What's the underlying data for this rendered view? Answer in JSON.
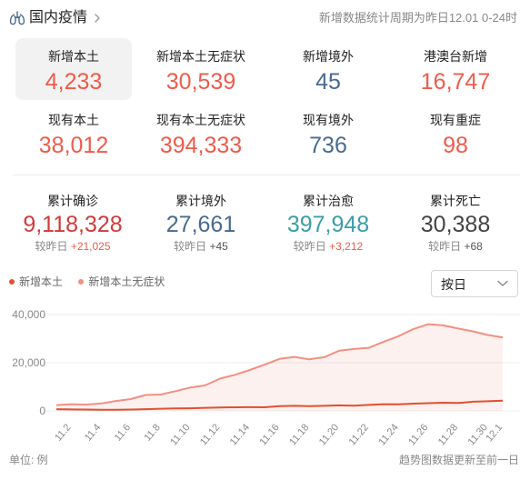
{
  "header": {
    "title": "国内疫情",
    "period_note": "新增数据统计周期为昨日12.01 0-24时"
  },
  "stats": [
    {
      "label": "新增本土",
      "value": "4,233",
      "color": "#ef5b4b",
      "active": true
    },
    {
      "label": "新增本土无症状",
      "value": "30,539",
      "color": "#ef5b4b"
    },
    {
      "label": "新增境外",
      "value": "45",
      "color": "#4a6a8f"
    },
    {
      "label": "港澳台新增",
      "value": "16,747",
      "color": "#ef5b4b"
    },
    {
      "label": "现有本土",
      "value": "38,012",
      "color": "#ef5b4b"
    },
    {
      "label": "现有本土无症状",
      "value": "394,333",
      "color": "#ef5b4b"
    },
    {
      "label": "现有境外",
      "value": "736",
      "color": "#4a6a8f"
    },
    {
      "label": "现有重症",
      "value": "98",
      "color": "#ef5b4b"
    }
  ],
  "cumulative": [
    {
      "label": "累计确诊",
      "value": "9,118,328",
      "compare_label": "较昨日",
      "delta": "+21,025",
      "color": "#d13a3a"
    },
    {
      "label": "累计境外",
      "value": "27,661",
      "compare_label": "较昨日",
      "delta": "+45",
      "color": "#4a6a8f"
    },
    {
      "label": "累计治愈",
      "value": "397,948",
      "compare_label": "较昨日",
      "delta": "+3,212",
      "color": "#3a9ea6"
    },
    {
      "label": "累计死亡",
      "value": "30,388",
      "compare_label": "较昨日",
      "delta": "+68",
      "color": "#444444"
    }
  ],
  "range_select": {
    "value": "按日"
  },
  "footer": {
    "unit": "单位: 例",
    "note": "趋势图数据更新至前一日"
  },
  "chart_data": {
    "type": "line",
    "x": [
      "11.1",
      "11.2",
      "11.3",
      "11.4",
      "11.5",
      "11.6",
      "11.7",
      "11.8",
      "11.9",
      "11.10",
      "11.11",
      "11.12",
      "11.13",
      "11.14",
      "11.15",
      "11.16",
      "11.17",
      "11.18",
      "11.19",
      "11.20",
      "11.21",
      "11.22",
      "11.23",
      "11.24",
      "11.25",
      "11.26",
      "11.27",
      "11.28",
      "11.29",
      "11.30",
      "12.1"
    ],
    "xticks": [
      "11.2",
      "11.4",
      "11.6",
      "11.8",
      "11.10",
      "11.12",
      "11.14",
      "11.16",
      "11.18",
      "11.20",
      "11.22",
      "11.24",
      "11.26",
      "11.28",
      "11.30",
      "12.1"
    ],
    "yticks": [
      "0",
      "20,000",
      "40,000"
    ],
    "ylim": [
      0,
      40000
    ],
    "grid": true,
    "series": [
      {
        "name": "新增本土",
        "color": "#e0502f",
        "fill": false,
        "values": [
          700,
          600,
          550,
          500,
          500,
          550,
          700,
          900,
          1000,
          1100,
          1300,
          1400,
          1500,
          1550,
          1500,
          2000,
          2100,
          2000,
          2100,
          2300,
          2200,
          2500,
          2800,
          2700,
          3000,
          3200,
          3400,
          3300,
          3800,
          4000,
          4233
        ]
      },
      {
        "name": "新增本土无症状",
        "color": "#f28f82",
        "fill": true,
        "values": [
          2400,
          2800,
          2600,
          3100,
          4100,
          4900,
          6600,
          6800,
          8200,
          9700,
          10600,
          13400,
          15000,
          17000,
          19200,
          21600,
          22400,
          21400,
          22300,
          25000,
          25700,
          26200,
          28700,
          31000,
          34000,
          36000,
          35500,
          34200,
          33000,
          31500,
          30539
        ]
      }
    ]
  }
}
